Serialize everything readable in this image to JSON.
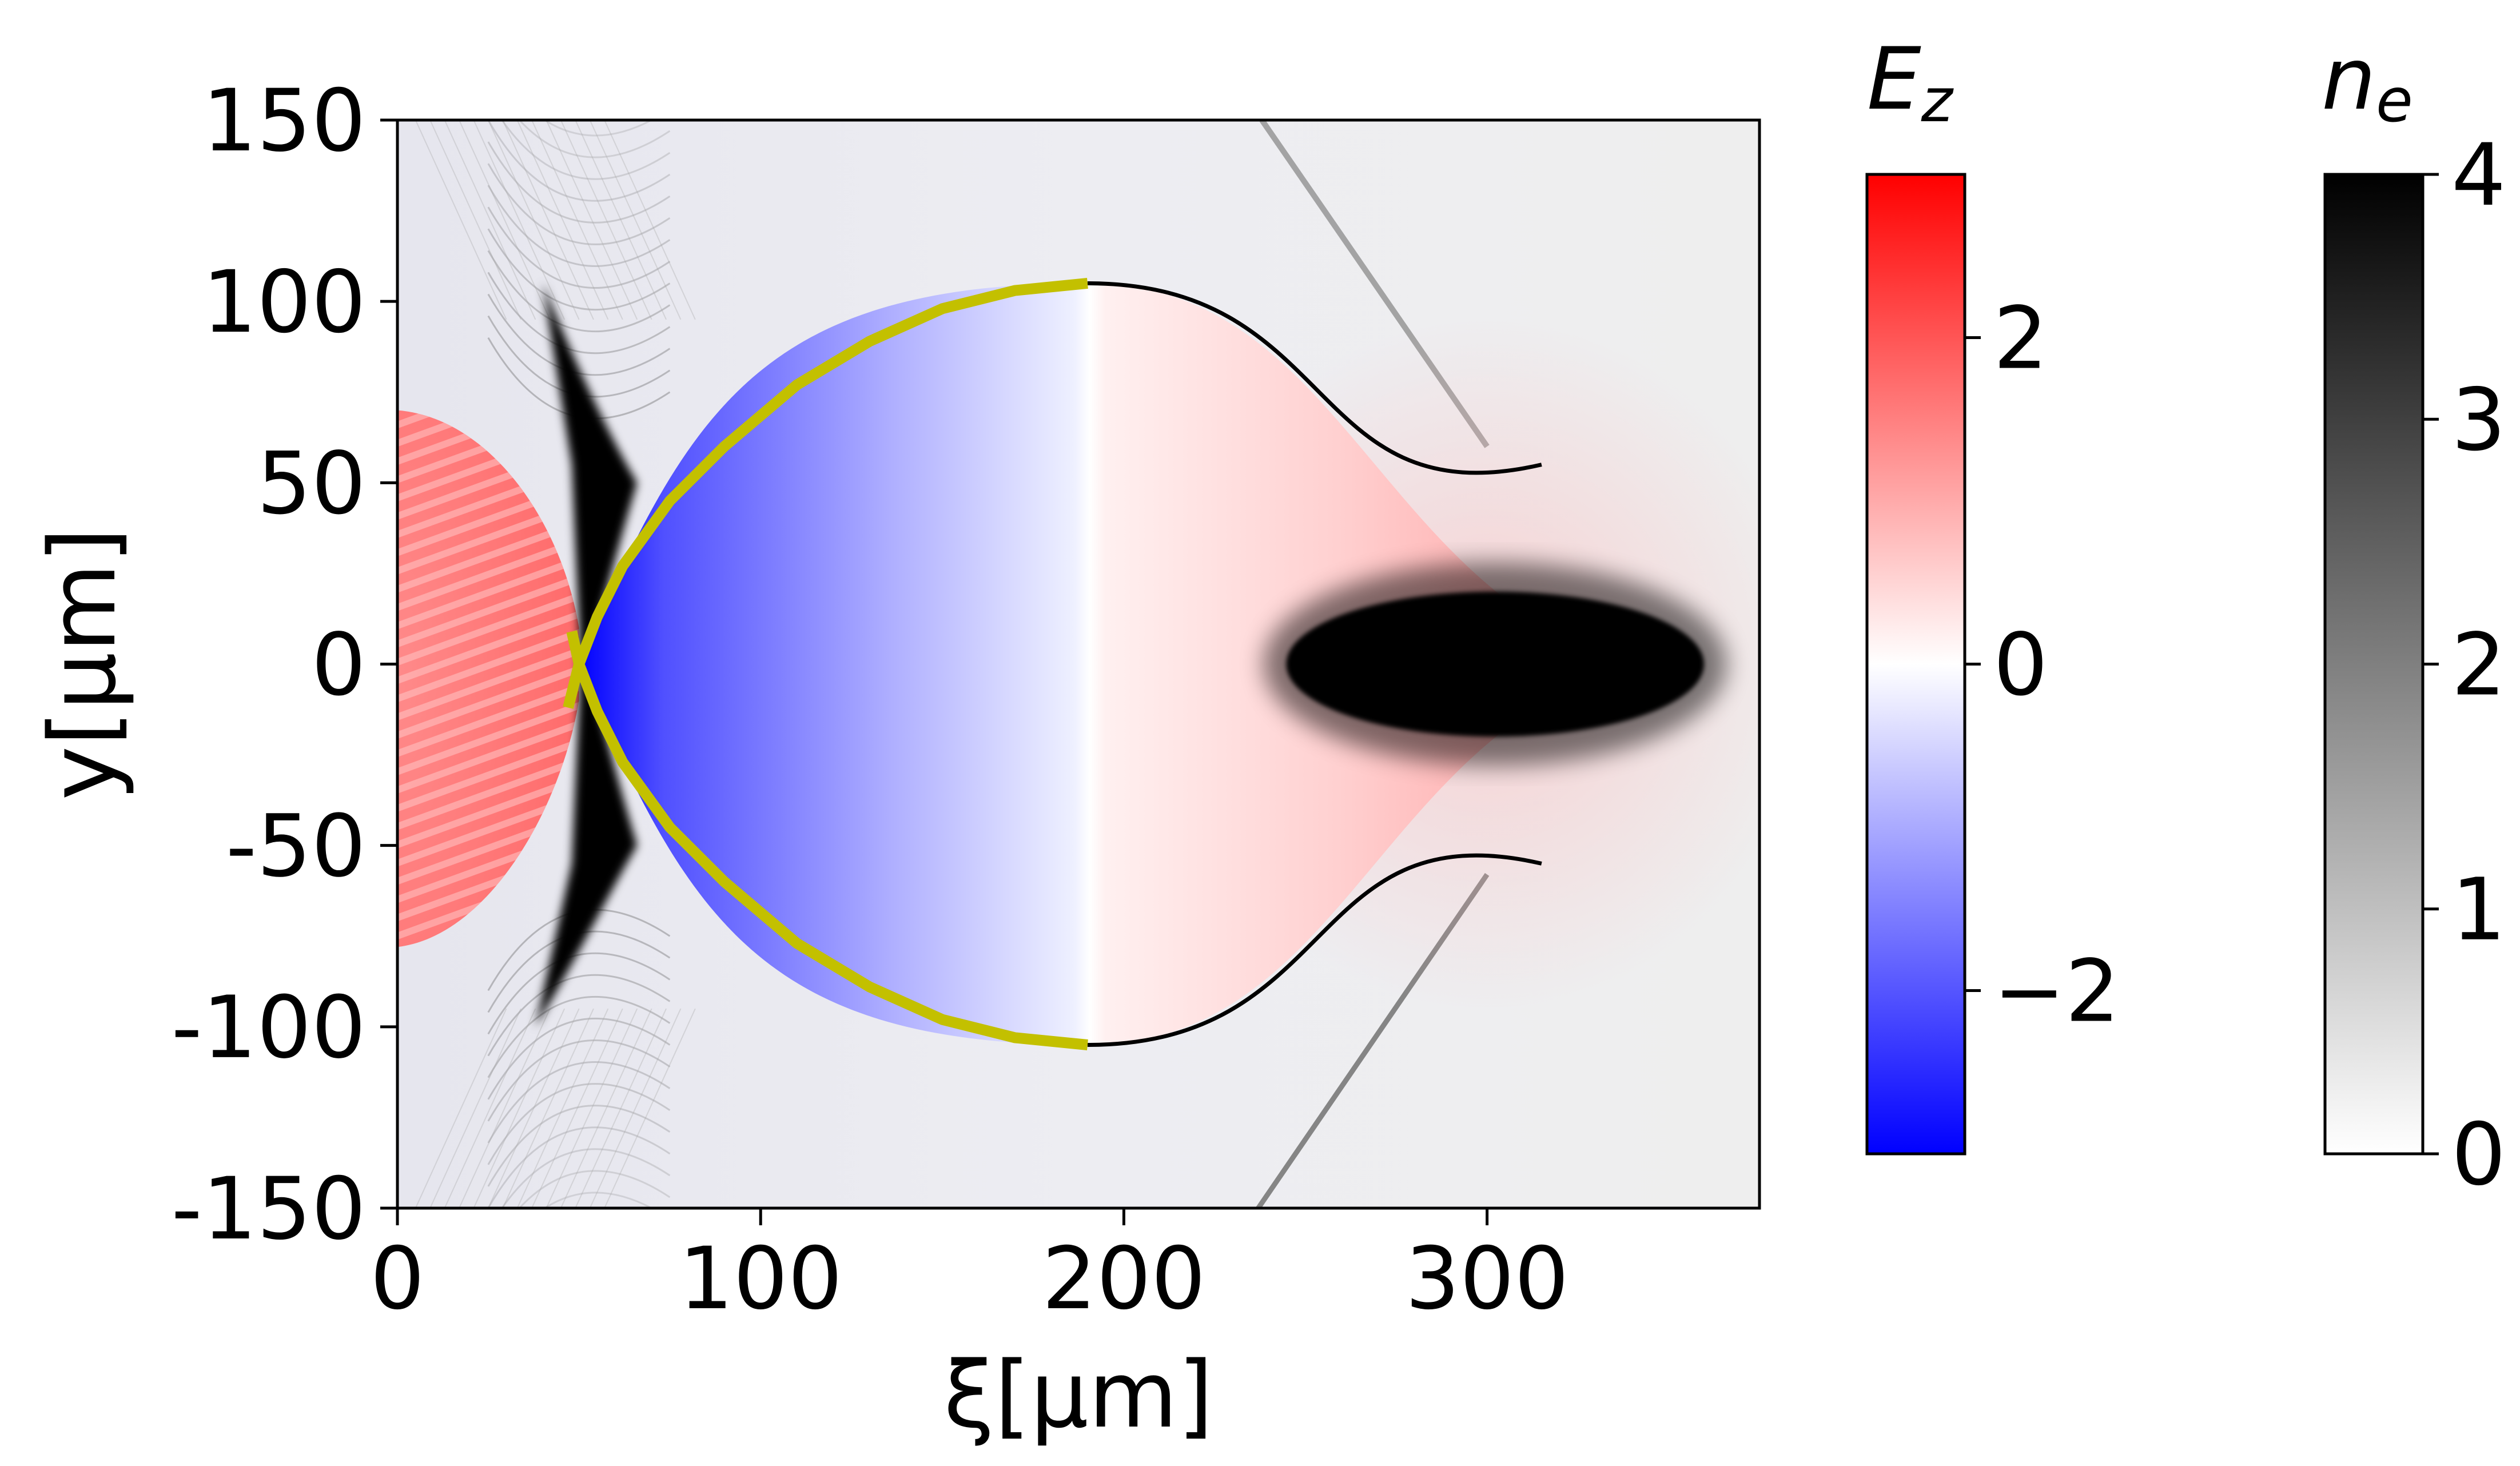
{
  "chart_data": {
    "type": "heatmap",
    "title": "",
    "xlabel": "ξ[μm]",
    "ylabel": "y[μm]",
    "xlim": [
      0,
      375
    ],
    "ylim": [
      -150,
      150
    ],
    "x_ticks": [
      0,
      100,
      200,
      300
    ],
    "y_ticks": [
      150,
      100,
      50,
      0,
      -50,
      -100,
      -150
    ],
    "y_tick_labels": [
      "150",
      "100",
      "50",
      "0",
      "-50",
      "-100",
      "-150"
    ],
    "grid": false,
    "layers": [
      {
        "name": "Ez",
        "colormap": "bwr",
        "range": [
          -3,
          3
        ]
      },
      {
        "name": "ne",
        "colormap": "gray_r",
        "range": [
          0,
          4
        ]
      }
    ],
    "bubble": {
      "front_x": 190,
      "rear_x": 50,
      "tail_x": 340,
      "half_width": 105,
      "Ez_sign_change_x": 190
    },
    "electron_bunch": {
      "x_range": [
        235,
        360
      ],
      "y_range": [
        -20,
        20
      ]
    },
    "overlay_curve": {
      "color": "#c3c000",
      "x": [
        190,
        170,
        150,
        130,
        110,
        90,
        75,
        62,
        55,
        50
      ],
      "y_upper": [
        105,
        103,
        98,
        89,
        77,
        60,
        45,
        27,
        13,
        0
      ]
    }
  },
  "colorbars": [
    {
      "name": "Ez",
      "label_main": "E",
      "label_sub": "z",
      "tick_values": [
        2,
        0,
        -2
      ],
      "tick_labels": [
        "2",
        "0",
        "−2"
      ],
      "range": [
        -3,
        3
      ],
      "colors": {
        "top": "#ff0000",
        "mid": "#ffffff",
        "bottom": "#0000ff"
      }
    },
    {
      "name": "ne",
      "label_main": "n",
      "label_sub": "e",
      "tick_values": [
        4,
        3,
        2,
        1,
        0
      ],
      "tick_labels": [
        "4",
        "3",
        "2",
        "1",
        "0"
      ],
      "range": [
        0,
        4
      ],
      "colors": {
        "top": "#000000",
        "bottom": "#ffffff"
      }
    }
  ]
}
